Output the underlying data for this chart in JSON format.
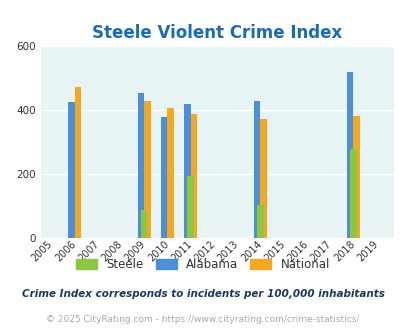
{
  "title": "Steele Violent Crime Index",
  "years": [
    2005,
    2006,
    2007,
    2008,
    2009,
    2010,
    2011,
    2012,
    2013,
    2014,
    2015,
    2016,
    2017,
    2018,
    2019
  ],
  "steele": {
    "years": [
      2009,
      2011,
      2014,
      2018
    ],
    "values": [
      85,
      193,
      103,
      278
    ],
    "color": "#8dc63f"
  },
  "alabama": {
    "years": [
      2006,
      2009,
      2010,
      2011,
      2014,
      2018
    ],
    "values": [
      425,
      453,
      378,
      420,
      428,
      520
    ],
    "color": "#4a90d9"
  },
  "national": {
    "years": [
      2006,
      2009,
      2010,
      2011,
      2014,
      2018
    ],
    "values": [
      473,
      428,
      405,
      388,
      373,
      382
    ],
    "color": "#f5a623"
  },
  "ylim": [
    0,
    600
  ],
  "yticks": [
    0,
    200,
    400,
    600
  ],
  "bg_color": "#e8f4f4",
  "fig_bg_color": "#ffffff",
  "title_color": "#1a6bb5",
  "title_fontsize": 12,
  "bar_width": 0.28,
  "footnote1": "Crime Index corresponds to incidents per 100,000 inhabitants",
  "footnote2": "© 2025 CityRating.com - https://www.cityrating.com/crime-statistics/",
  "legend_labels": [
    "Steele",
    "Alabama",
    "National"
  ]
}
